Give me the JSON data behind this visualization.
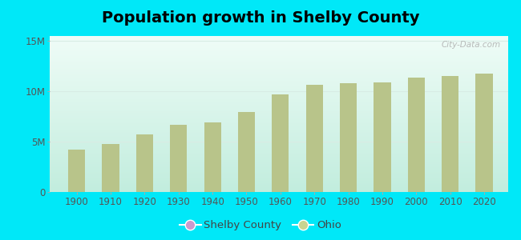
{
  "title": "Population growth in Shelby County",
  "years": [
    1900,
    1910,
    1920,
    1930,
    1940,
    1950,
    1960,
    1970,
    1980,
    1990,
    2000,
    2010,
    2020
  ],
  "ohio_values": [
    4200000,
    4800000,
    5760000,
    6650000,
    6910000,
    7950000,
    9700000,
    10650000,
    10800000,
    10850000,
    11350000,
    11540000,
    11800000
  ],
  "bar_color": "#b8c48a",
  "bg_color_topleft": "#c8f0e8",
  "bg_color_topright": "#e8f8f4",
  "bg_color_bottom": "#c8ede0",
  "outer_background": "#00e8f8",
  "ylabel_ticks": [
    "0",
    "5M",
    "10M",
    "15M"
  ],
  "ytick_values": [
    0,
    5000000,
    10000000,
    15000000
  ],
  "ylim": [
    0,
    15500000
  ],
  "watermark": "City-Data.com",
  "legend_shelby_color": "#cc99cc",
  "legend_ohio_color": "#c8d490",
  "title_fontsize": 14,
  "tick_fontsize": 8.5,
  "legend_fontsize": 9.5,
  "grid_color": "#d8ece4"
}
